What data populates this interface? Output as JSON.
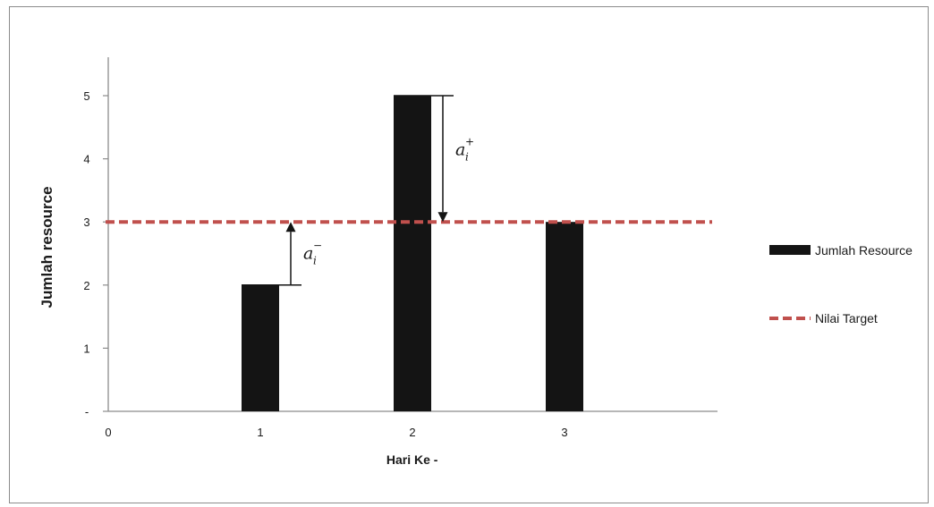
{
  "chart_data": {
    "type": "bar",
    "xlabel": "Hari Ke -",
    "ylabel": "Jumlah resource",
    "x_ticks": [
      "0",
      "1",
      "2",
      "3"
    ],
    "y_ticks": [
      "-",
      "1",
      "2",
      "3",
      "4",
      "5"
    ],
    "ylim": [
      0,
      5.6
    ],
    "xlim": [
      0,
      4
    ],
    "series": [
      {
        "name": "Jumlah Resource",
        "type": "bar",
        "x": [
          1,
          2,
          3
        ],
        "values": [
          2,
          5,
          3
        ],
        "color": "#141414"
      },
      {
        "name": "Nilai Target",
        "type": "line",
        "style": "dashed",
        "value": 3,
        "color": "#c0504d"
      }
    ],
    "annotations": [
      {
        "symbol": "a",
        "sub": "i",
        "sup": "−",
        "direction": "up",
        "x": 1.2,
        "from": 2,
        "to": 3
      },
      {
        "symbol": "a",
        "sub": "i",
        "sup": "+",
        "direction": "down",
        "x": 2.2,
        "from": 5,
        "to": 3
      }
    ],
    "legend": {
      "placement": "right",
      "items": [
        "Jumlah Resource",
        "Nilai Target"
      ]
    },
    "grid": false
  }
}
